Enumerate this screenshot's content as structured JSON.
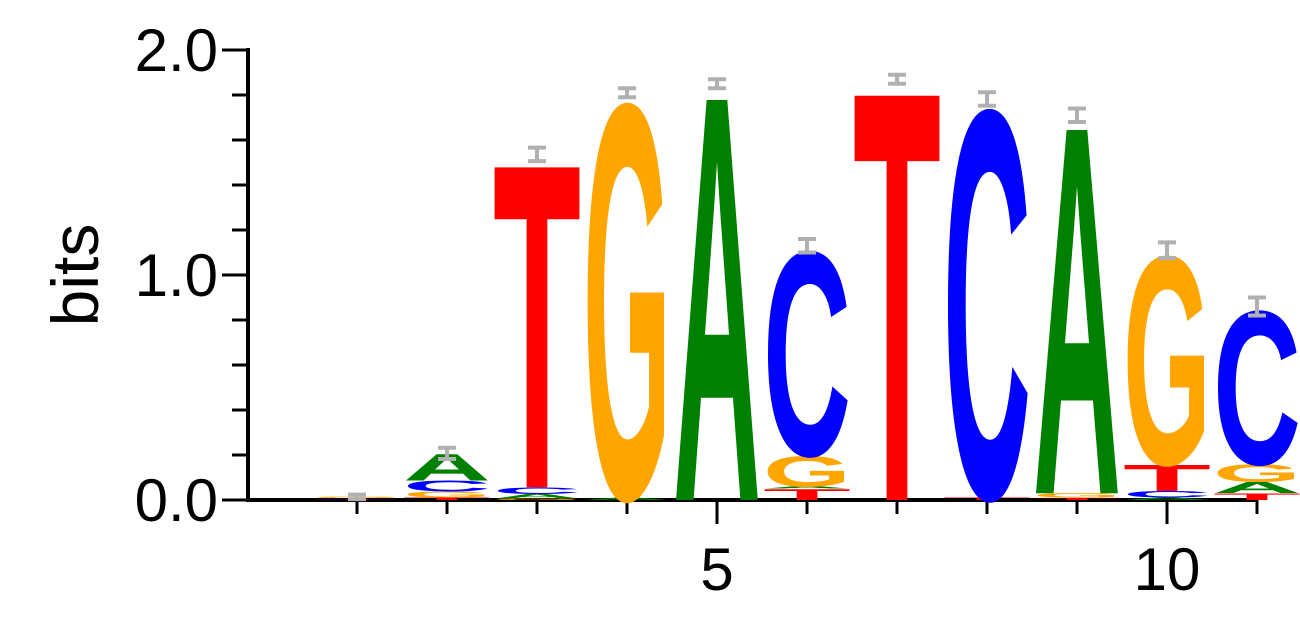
{
  "chart_data": {
    "type": "sequence-logo",
    "ylabel": "bits",
    "ylim": [
      0,
      2.0
    ],
    "yticks": [
      "0.0",
      "1.0",
      "2.0"
    ],
    "xticks": [
      {
        "position": 5,
        "label": "5"
      },
      {
        "position": 10,
        "label": "10"
      }
    ],
    "alphabet_colors": {
      "A": "#008000",
      "C": "#0000ff",
      "G": "#ffa500",
      "T": "#ff0000"
    },
    "positions": [
      {
        "pos": 1,
        "letters": [
          {
            "b": "T",
            "h": 0.004
          },
          {
            "b": "C",
            "h": 0.004
          },
          {
            "b": "G",
            "h": 0.006
          }
        ],
        "error": 0.01
      },
      {
        "pos": 2,
        "letters": [
          {
            "b": "T",
            "h": 0.012
          },
          {
            "b": "G",
            "h": 0.025
          },
          {
            "b": "C",
            "h": 0.05
          },
          {
            "b": "A",
            "h": 0.12
          }
        ],
        "error": 0.025
      },
      {
        "pos": 3,
        "letters": [
          {
            "b": "G",
            "h": 0.006
          },
          {
            "b": "A",
            "h": 0.02
          },
          {
            "b": "C",
            "h": 0.03
          },
          {
            "b": "T",
            "h": 1.48
          }
        ],
        "error": 0.03
      },
      {
        "pos": 4,
        "letters": [
          {
            "b": "A",
            "h": 0.01
          },
          {
            "b": "G",
            "h": 1.8
          }
        ],
        "error": 0.02
      },
      {
        "pos": 5,
        "letters": [
          {
            "b": "A",
            "h": 1.85
          }
        ],
        "error": 0.02
      },
      {
        "pos": 6,
        "letters": [
          {
            "b": "T",
            "h": 0.05
          },
          {
            "b": "A",
            "h": 0.01
          },
          {
            "b": "G",
            "h": 0.14
          },
          {
            "b": "C",
            "h": 0.93
          }
        ],
        "error": 0.03
      },
      {
        "pos": 7,
        "letters": [
          {
            "b": "T",
            "h": 1.87
          }
        ],
        "error": 0.02
      },
      {
        "pos": 8,
        "letters": [
          {
            "b": "T",
            "h": 0.012
          },
          {
            "b": "C",
            "h": 1.77
          }
        ],
        "error": 0.03
      },
      {
        "pos": 9,
        "letters": [
          {
            "b": "T",
            "h": 0.01
          },
          {
            "b": "G",
            "h": 0.02
          },
          {
            "b": "A",
            "h": 1.68
          }
        ],
        "error": 0.03
      },
      {
        "pos": 10,
        "letters": [
          {
            "b": "A",
            "h": 0.01
          },
          {
            "b": "C",
            "h": 0.03
          },
          {
            "b": "T",
            "h": 0.12
          },
          {
            "b": "G",
            "h": 0.95
          }
        ],
        "error": 0.035
      },
      {
        "pos": 11,
        "letters": [
          {
            "b": "T",
            "h": 0.03
          },
          {
            "b": "A",
            "h": 0.05
          },
          {
            "b": "G",
            "h": 0.08
          },
          {
            "b": "C",
            "h": 0.7
          }
        ],
        "error": 0.04
      }
    ]
  }
}
